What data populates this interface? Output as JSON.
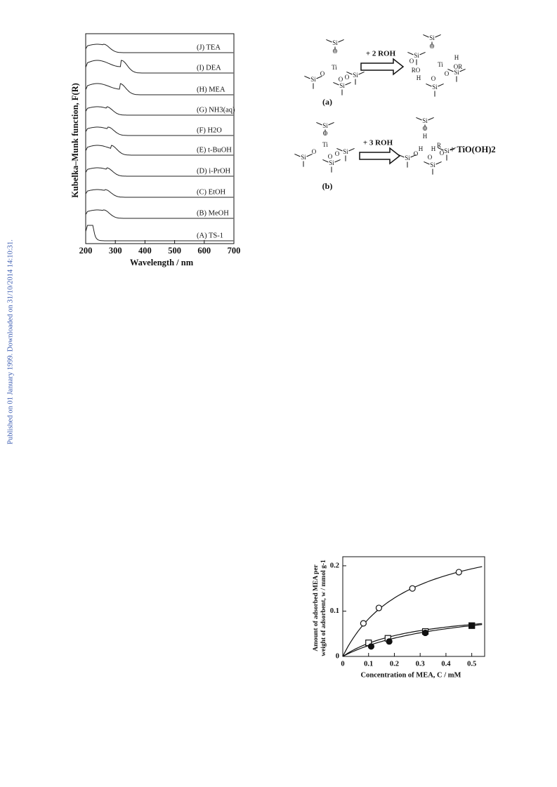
{
  "side_note": "Published on 01 January 1999. Downloaded on 31/10/2014 14:10:31.",
  "figure_spectra": {
    "ylabel": "Kubelka–Munk function,  F(R)",
    "xlabel": "Wavelength  / nm",
    "xlim": [
      200,
      700
    ],
    "xticks": [
      200,
      300,
      400,
      500,
      600,
      700
    ],
    "curve_labels": [
      "(J) TEA",
      "(I) DEA",
      "(H) MEA",
      "(G) NH3(aq)",
      "(F) H2O",
      "(E) t-BuOH",
      "(D) i-PrOH",
      "(C) EtOH",
      "(B) MeOH",
      "(A) TS-1"
    ]
  },
  "scheme": {
    "a": {
      "reagent": "+ 2 ROH",
      "label": "(a)",
      "reactant_atoms": [
        "Si",
        "O",
        "Ti",
        "O",
        "Si",
        "O",
        "Si",
        "O",
        "Si"
      ],
      "product_atoms": [
        "Si",
        "O",
        "Si",
        "O",
        "H",
        "OR",
        "RO",
        "H",
        "Ti",
        "O",
        "Si",
        "O",
        "Si"
      ]
    },
    "b": {
      "reagent": "+ 3 ROH",
      "label": "(b)",
      "reactant_atoms": [
        "Si",
        "O",
        "Ti",
        "O",
        "Si",
        "O",
        "Si",
        "O",
        "Si"
      ],
      "product_atoms": [
        "Si",
        "O",
        "H",
        "Si",
        "O",
        "H",
        "H",
        "R",
        "O",
        "Si",
        "O",
        "Si"
      ],
      "byproduct": "+ TiO(OH)2"
    }
  },
  "figure_adsorption": {
    "type": "scatter",
    "ylabel": [
      "Amount of adsorbed MEA per",
      "weight of adsorbent,  w / mmol g-1"
    ],
    "xlabel": "Concentration of MEA, C / mM",
    "xlim": [
      0,
      0.55
    ],
    "ylim": [
      0,
      0.22
    ],
    "xticks": [
      0,
      0.1,
      0.2,
      0.3,
      0.4,
      0.5
    ],
    "yticks": [
      0,
      0.1,
      0.2
    ],
    "series": [
      {
        "marker": "open-circle",
        "x": [
          0.08,
          0.14,
          0.27,
          0.45
        ],
        "values": [
          0.073,
          0.107,
          0.15,
          0.186
        ]
      },
      {
        "marker": "open-square",
        "x": [
          0.1,
          0.175,
          0.32,
          0.5
        ],
        "values": [
          0.03,
          0.04,
          0.055,
          0.068
        ]
      },
      {
        "marker": "filled-circle",
        "x": [
          0.11,
          0.18,
          0.32
        ],
        "values": [
          0.022,
          0.033,
          0.052
        ]
      },
      {
        "marker": "filled-square",
        "x": [
          0.5
        ],
        "values": [
          0.068
        ]
      }
    ]
  }
}
